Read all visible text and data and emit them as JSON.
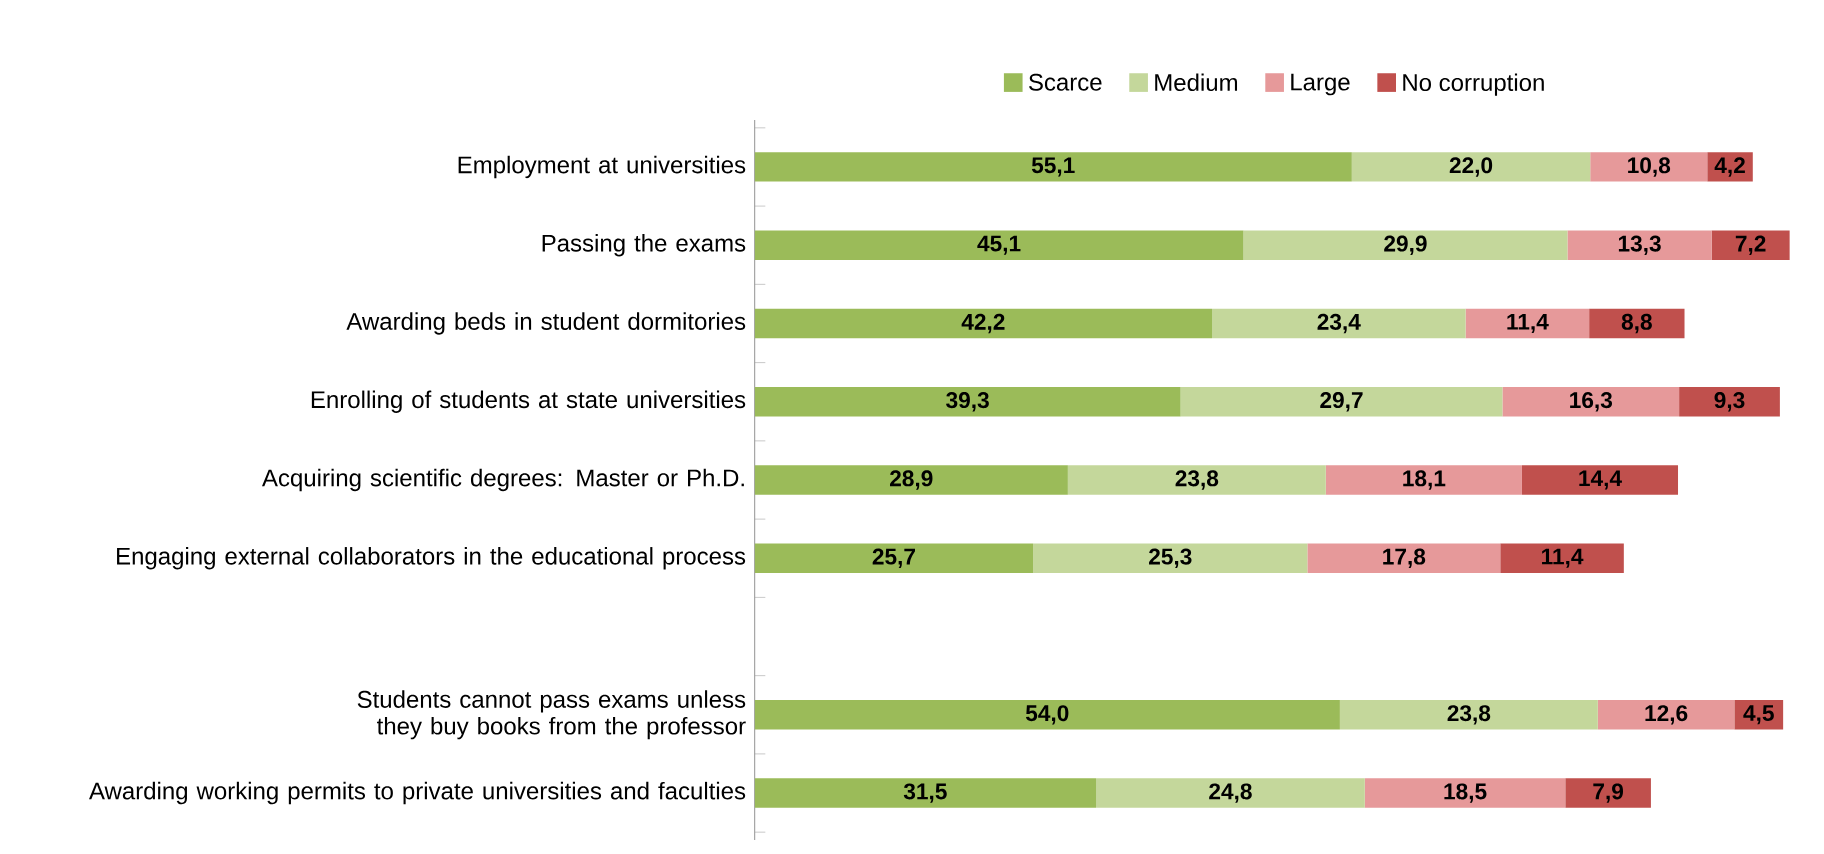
{
  "chart_data": {
    "type": "bar",
    "orientation": "horizontal",
    "stacked": true,
    "legend": "top",
    "tick_labels": "y",
    "grid": false,
    "categories": [
      "Employment at universities",
      "Passing the exams",
      "Awarding beds in student dormitories",
      "Enrolling of students at state universities",
      "Acquiring scientific degrees: Master or Ph.D.",
      "Engaging external collaborators in the educational process",
      null,
      "Students cannot pass exams unless they buy books from the professor",
      "Awarding working permits to private universities and faculties"
    ],
    "series": [
      {
        "name": "Scarce",
        "color": "#9bbb59",
        "values": [
          55.1,
          45.1,
          42.2,
          39.3,
          28.9,
          25.7,
          null,
          54.0,
          31.5
        ],
        "value_labels": [
          "55,1",
          "45,1",
          "42,2",
          "39,3",
          "28,9",
          "25,7",
          null,
          "54,0",
          "31,5"
        ]
      },
      {
        "name": "Medium",
        "color": "#c4d79b",
        "values": [
          22.0,
          29.9,
          23.4,
          29.7,
          23.8,
          25.3,
          null,
          23.8,
          24.8
        ],
        "value_labels": [
          "22,0",
          "29,9",
          "23,4",
          "29,7",
          "23,8",
          "25,3",
          null,
          "23,8",
          "24,8"
        ]
      },
      {
        "name": "Large",
        "color": "#e6999a",
        "values": [
          10.8,
          13.3,
          11.4,
          16.3,
          18.1,
          17.8,
          null,
          12.6,
          18.5
        ],
        "value_labels": [
          "10,8",
          "13,3",
          "11,4",
          "16,3",
          "18,1",
          "17,8",
          null,
          "12,6",
          "18,5"
        ]
      },
      {
        "name": "No corruption",
        "color": "#c0504d",
        "values": [
          4.2,
          7.2,
          8.8,
          9.3,
          14.4,
          11.4,
          null,
          4.5,
          7.9
        ],
        "value_labels": [
          "4,2",
          "7,2",
          "8,8",
          "9,3",
          "14,4",
          "11,4",
          null,
          "4,5",
          "7,9"
        ]
      }
    ]
  }
}
